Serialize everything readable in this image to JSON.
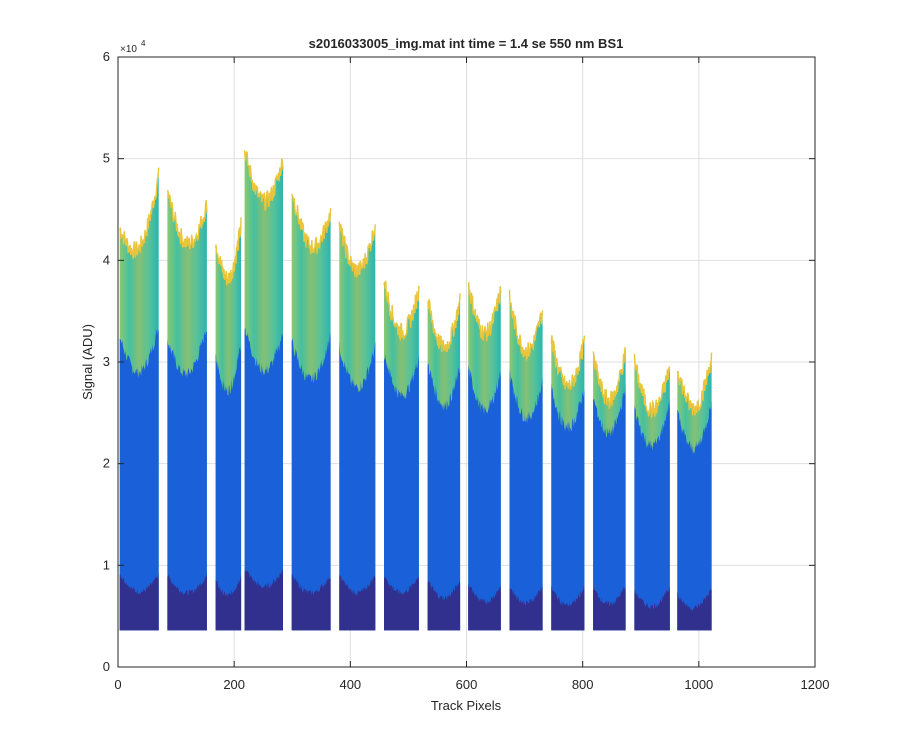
{
  "chart_data": {
    "type": "area",
    "title": "s2016033005_img.mat int time = 1.4 se  550 nm BS1",
    "xlabel": "Track Pixels",
    "ylabel": "Signal (ADU)",
    "xlim": [
      0,
      1200
    ],
    "ylim": [
      0,
      60000
    ],
    "x_ticks": [
      0,
      200,
      400,
      600,
      800,
      1000,
      1200
    ],
    "y_ticks": [
      0,
      1,
      2,
      3,
      4,
      5,
      6
    ],
    "y_exponent_label": "×10",
    "y_exponent": "4",
    "grid": true,
    "baseline": 3600,
    "segments": [
      {
        "x0": 3,
        "x1": 70,
        "layer_top": [
          43200,
          48300
        ],
        "layer_mid": [
          32500,
          33500
        ],
        "layer_low": [
          9200,
          9000
        ]
      },
      {
        "x0": 85,
        "x1": 153,
        "layer_top": [
          46800,
          45500
        ],
        "layer_mid": [
          32200,
          33500
        ],
        "layer_low": [
          9000,
          9000
        ]
      },
      {
        "x0": 168,
        "x1": 212,
        "layer_top": [
          42000,
          43500
        ],
        "layer_mid": [
          30500,
          32000
        ],
        "layer_low": [
          8500,
          9000
        ]
      },
      {
        "x0": 218,
        "x1": 284,
        "layer_top": [
          50800,
          49800
        ],
        "layer_mid": [
          33500,
          32800
        ],
        "layer_low": [
          9700,
          9500
        ]
      },
      {
        "x0": 299,
        "x1": 366,
        "layer_top": [
          47000,
          44700
        ],
        "layer_mid": [
          32000,
          32600
        ],
        "layer_low": [
          9000,
          9000
        ]
      },
      {
        "x0": 381,
        "x1": 443,
        "layer_top": [
          43500,
          43500
        ],
        "layer_mid": [
          31500,
          31500
        ],
        "layer_low": [
          9000,
          9000
        ]
      },
      {
        "x0": 458,
        "x1": 518,
        "layer_top": [
          38000,
          37000
        ],
        "layer_mid": [
          31000,
          30500
        ],
        "layer_low": [
          9000,
          9000
        ]
      },
      {
        "x0": 533,
        "x1": 589,
        "layer_top": [
          36000,
          36000
        ],
        "layer_mid": [
          30000,
          29500
        ],
        "layer_low": [
          8500,
          8500
        ]
      },
      {
        "x0": 603,
        "x1": 659,
        "layer_top": [
          37700,
          37000
        ],
        "layer_mid": [
          29500,
          29000
        ],
        "layer_low": [
          8200,
          8000
        ]
      },
      {
        "x0": 674,
        "x1": 731,
        "layer_top": [
          36200,
          35000
        ],
        "layer_mid": [
          29000,
          28000
        ],
        "layer_low": [
          8000,
          8000
        ]
      },
      {
        "x0": 746,
        "x1": 803,
        "layer_top": [
          32200,
          32000
        ],
        "layer_mid": [
          27500,
          27500
        ],
        "layer_low": [
          7800,
          7800
        ]
      },
      {
        "x0": 818,
        "x1": 874,
        "layer_top": [
          30500,
          31000
        ],
        "layer_mid": [
          26500,
          27500
        ],
        "layer_low": [
          7800,
          8000
        ]
      },
      {
        "x0": 889,
        "x1": 950,
        "layer_top": [
          30000,
          29500
        ],
        "layer_mid": [
          25500,
          26000
        ],
        "layer_low": [
          7500,
          7800
        ]
      },
      {
        "x0": 963,
        "x1": 1022,
        "layer_top": [
          29500,
          30500
        ],
        "layer_mid": [
          25000,
          26000
        ],
        "layer_low": [
          7200,
          7800
        ]
      }
    ],
    "colors": {
      "top_layer": "#4dbfa0",
      "top_edge": "#e8c53a",
      "mid_layer": "#1a60d8",
      "low_layer": "#32308e",
      "gap": "#ffffff",
      "grid": "#dfdfdf",
      "axis": "#262626"
    }
  }
}
